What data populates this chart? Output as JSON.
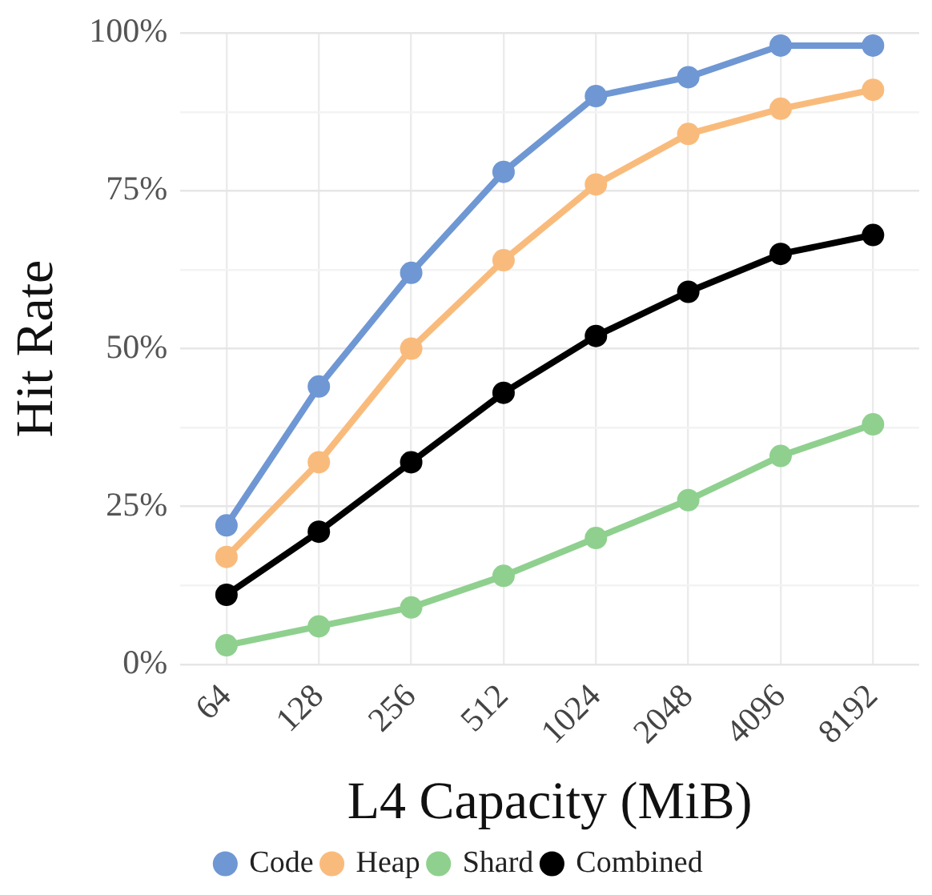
{
  "chart_data": {
    "type": "line",
    "xlabel": "L4 Capacity (MiB)",
    "ylabel": "Hit Rate",
    "categories": [
      "64",
      "128",
      "256",
      "512",
      "1024",
      "2048",
      "4096",
      "8192"
    ],
    "series": [
      {
        "name": "Code",
        "color": "#6f97d3",
        "values": [
          22,
          44,
          62,
          78,
          90,
          93,
          98,
          98
        ]
      },
      {
        "name": "Heap",
        "color": "#f9bb7c",
        "values": [
          17,
          32,
          50,
          64,
          76,
          84,
          88,
          91
        ]
      },
      {
        "name": "Shard",
        "color": "#8fd08f",
        "values": [
          3,
          6,
          9,
          14,
          20,
          26,
          33,
          38
        ]
      },
      {
        "name": "Combined",
        "color": "#000000",
        "values": [
          11,
          21,
          32,
          43,
          52,
          59,
          65,
          68
        ]
      }
    ],
    "ylim": [
      0,
      100
    ],
    "yticks": [
      {
        "value": 0,
        "label": "0%"
      },
      {
        "value": 12.5,
        "label": null
      },
      {
        "value": 25,
        "label": "25%"
      },
      {
        "value": 37.5,
        "label": null
      },
      {
        "value": 50,
        "label": "50%"
      },
      {
        "value": 62.5,
        "label": null
      },
      {
        "value": 75,
        "label": "75%"
      },
      {
        "value": 87.5,
        "label": null
      },
      {
        "value": 100,
        "label": "100%"
      }
    ],
    "grid": true,
    "legend": "bottom",
    "marker": "circle",
    "line_style": "solid"
  }
}
